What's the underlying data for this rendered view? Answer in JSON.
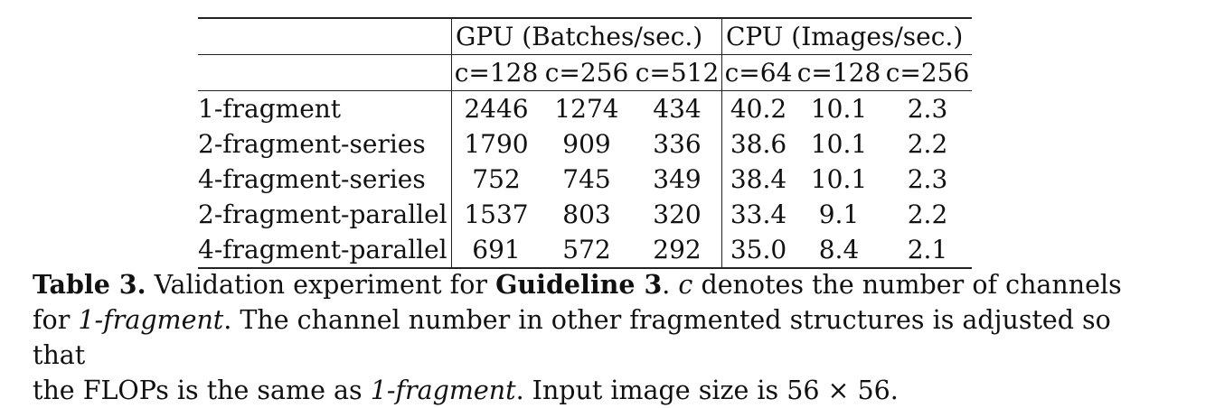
{
  "table": {
    "group_headers": {
      "gpu": "GPU (Batches/sec.)",
      "cpu": "CPU (Images/sec.)"
    },
    "sub_headers": [
      "c=128",
      "c=256",
      "c=512",
      "c=64",
      "c=128",
      "c=256"
    ],
    "rows": [
      {
        "label": "1-fragment",
        "values": [
          "2446",
          "1274",
          "434",
          "40.2",
          "10.1",
          "2.3"
        ]
      },
      {
        "label": "2-fragment-series",
        "values": [
          "1790",
          "909",
          "336",
          "38.6",
          "10.1",
          "2.2"
        ]
      },
      {
        "label": "4-fragment-series",
        "values": [
          "752",
          "745",
          "349",
          "38.4",
          "10.1",
          "2.3"
        ]
      },
      {
        "label": "2-fragment-parallel",
        "values": [
          "1537",
          "803",
          "320",
          "33.4",
          "9.1",
          "2.2"
        ]
      },
      {
        "label": "4-fragment-parallel",
        "values": [
          "691",
          "572",
          "292",
          "35.0",
          "8.4",
          "2.1"
        ]
      }
    ]
  },
  "caption": {
    "label": "Table 3.",
    "t1": " Validation experiment for ",
    "guideline": "Guideline 3",
    "t2": ". ",
    "c_symbol": "c",
    "t3": " denotes the number of channels",
    "line2_t1": "for ",
    "frag1": "1-fragment",
    "line2_t2": ". The channel number in other fragmented structures is adjusted so that",
    "line3_t1": "the FLOPs is the same as ",
    "frag2": "1-fragment",
    "line3_t2": ". Input image size is 56 × 56."
  }
}
